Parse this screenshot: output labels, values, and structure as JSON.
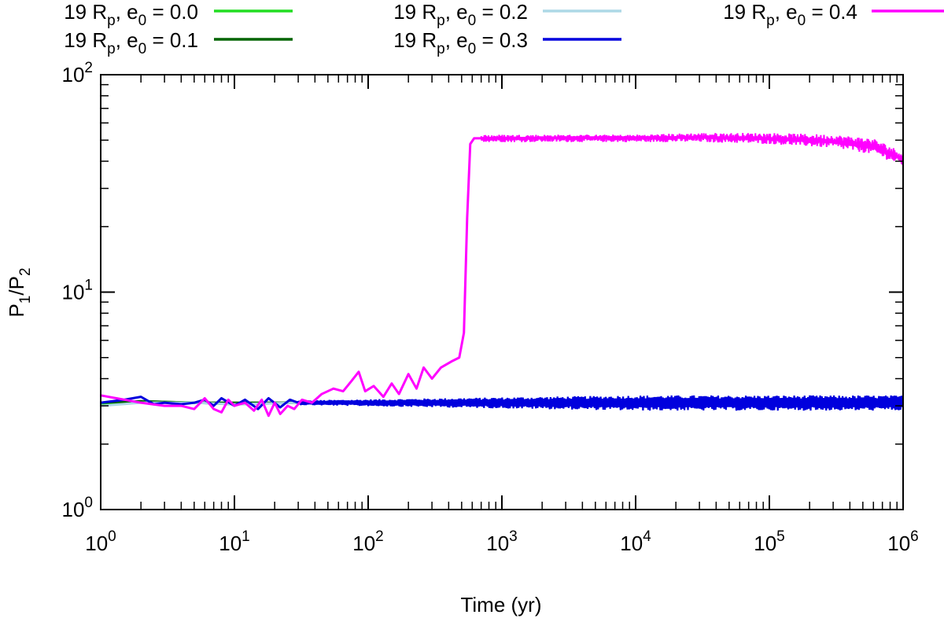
{
  "chart_data": {
    "type": "line",
    "title": "",
    "xlabel": "Time (yr)",
    "ylabel": {
      "base": "P",
      "sub1": "1",
      "mid": "/P",
      "sub2": "2"
    },
    "xscale": "log",
    "yscale": "log",
    "xlim": [
      1,
      1000000
    ],
    "ylim": [
      1,
      100
    ],
    "grid": false,
    "legend_placement": "top",
    "x_ticks": [
      {
        "base": "10",
        "exp": "0"
      },
      {
        "base": "10",
        "exp": "1"
      },
      {
        "base": "10",
        "exp": "2"
      },
      {
        "base": "10",
        "exp": "3"
      },
      {
        "base": "10",
        "exp": "4"
      },
      {
        "base": "10",
        "exp": "5"
      },
      {
        "base": "10",
        "exp": "6"
      }
    ],
    "y_ticks": [
      {
        "base": "10",
        "exp": "0"
      },
      {
        "base": "10",
        "exp": "1"
      },
      {
        "base": "10",
        "exp": "2"
      }
    ],
    "series": [
      {
        "name": "19 R_p, e_0 = 0.0",
        "label": {
          "pre": "19 R",
          "sub1": "p",
          "mid": ", e",
          "sub2": "0",
          "post": " = 0.0"
        },
        "color": "#22dd22",
        "x": [
          1,
          2,
          5,
          10,
          30,
          100,
          300,
          1000,
          10000,
          100000,
          1000000
        ],
        "y": [
          3.05,
          3.15,
          3.1,
          3.05,
          3.1,
          3.1,
          3.1,
          3.1,
          3.1,
          3.1,
          3.1
        ]
      },
      {
        "name": "19 R_p, e_0 = 0.1",
        "label": {
          "pre": "19 R",
          "sub1": "p",
          "mid": ", e",
          "sub2": "0",
          "post": " = 0.1"
        },
        "color": "#006400",
        "x": [
          1,
          2,
          5,
          10,
          30,
          100,
          300,
          1000,
          10000,
          100000,
          1000000
        ],
        "y": [
          3.1,
          3.15,
          3.1,
          3.1,
          3.1,
          3.1,
          3.1,
          3.1,
          3.1,
          3.1,
          3.1
        ]
      },
      {
        "name": "19 R_p, e_0 = 0.2",
        "label": {
          "pre": "19 R",
          "sub1": "p",
          "mid": ", e",
          "sub2": "0",
          "post": " = 0.2"
        },
        "color": "#add8e6",
        "x": [
          1,
          2,
          5,
          10,
          30,
          100,
          300,
          1000,
          10000,
          100000,
          1000000
        ],
        "y": [
          3.0,
          3.1,
          3.1,
          3.05,
          3.1,
          3.1,
          3.1,
          3.1,
          3.1,
          3.1,
          3.1
        ]
      },
      {
        "name": "19 R_p, e_0 = 0.3",
        "label": {
          "pre": "19 R",
          "sub1": "p",
          "mid": ", e",
          "sub2": "0",
          "post": " = 0.3"
        },
        "color": "#0000dd",
        "band_start_x": 30,
        "band_low": 2.85,
        "band_high": 3.35,
        "x": [
          1,
          1.5,
          2,
          2.5,
          3,
          4,
          5,
          6,
          7,
          8,
          10,
          12,
          15,
          18,
          22,
          26,
          30,
          1000000
        ],
        "y": [
          3.1,
          3.2,
          3.3,
          3.05,
          3.1,
          3.05,
          3.1,
          3.2,
          3.0,
          3.25,
          3.0,
          3.2,
          2.9,
          3.25,
          2.95,
          3.2,
          3.1,
          3.1
        ]
      },
      {
        "name": "19 R_p, e_0 = 0.4",
        "label": {
          "pre": "19 R",
          "sub1": "p",
          "mid": ", e",
          "sub2": "0",
          "post": " = 0.4"
        },
        "color": "#ff00ff",
        "x": [
          1,
          2,
          3,
          4,
          5,
          6,
          7,
          8,
          9,
          10,
          12,
          14,
          16,
          18,
          20,
          22,
          25,
          28,
          32,
          38,
          45,
          55,
          65,
          75,
          85,
          95,
          110,
          130,
          150,
          170,
          200,
          230,
          260,
          300,
          350,
          420,
          480,
          520,
          550,
          580,
          620,
          1000,
          3000,
          10000,
          30000,
          100000,
          300000,
          600000,
          1000000
        ],
        "y": [
          3.35,
          3.1,
          3.0,
          3.0,
          2.9,
          3.25,
          2.9,
          2.8,
          3.2,
          3.0,
          3.1,
          2.85,
          3.2,
          2.7,
          3.1,
          2.75,
          3.0,
          2.9,
          3.2,
          3.1,
          3.4,
          3.6,
          3.5,
          3.9,
          4.3,
          3.5,
          3.7,
          3.3,
          3.8,
          3.4,
          4.2,
          3.6,
          4.5,
          4.0,
          4.5,
          4.8,
          5.0,
          6.5,
          22,
          48,
          51,
          51,
          51.5,
          51.5,
          51.5,
          50.5,
          49,
          46,
          41
        ],
        "band": {
          "x_from": 700,
          "x_to": 1000000,
          "low": [
            49,
            49,
            49,
            48,
            46,
            43,
            38
          ],
          "high": [
            53,
            53,
            54,
            54,
            53,
            51,
            44
          ],
          "x": [
            700,
            10000,
            30000,
            100000,
            300000,
            600000,
            1000000
          ]
        }
      }
    ]
  }
}
